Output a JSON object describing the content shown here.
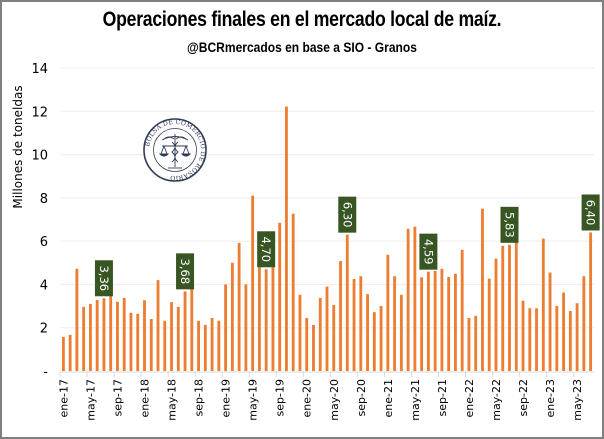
{
  "header": {
    "title": "Operaciones finales en el mercado local  de maíz.",
    "subtitle": "@BCRmercados en base a SIO - Granos"
  },
  "logo": {
    "name": "bolsa-de-comercio-de-rosario-seal",
    "text": "BOLSA DE COMERCIO DE ROSARIO"
  },
  "colors": {
    "bar": "#ED7D31",
    "label_bg": "#375623",
    "label_text": "#FFFFFF",
    "grid": "#EDEDED",
    "axis": "#D9D9D9",
    "logo": "#2F3B55"
  },
  "chart_data": {
    "type": "bar",
    "title": "Operaciones finales en el mercado local  de maíz.",
    "subtitle": "@BCRmercados en base a SIO - Granos",
    "xlabel": "",
    "ylabel": "Millones de toneldas",
    "ylim": [
      0,
      14
    ],
    "y_ticks": [
      0,
      2,
      4,
      6,
      8,
      10,
      12,
      14
    ],
    "y_tick_labels": [
      "-",
      "2",
      "4",
      "6",
      "8",
      "10",
      "12",
      "14"
    ],
    "grid": true,
    "legend": "none",
    "start_month": "ene-17",
    "x_tick_labels": [
      "ene-17",
      "may-17",
      "sep-17",
      "ene-18",
      "may-18",
      "sep-18",
      "ene-19",
      "may-19",
      "sep-19",
      "ene-20",
      "may-20",
      "sep-20",
      "ene-21",
      "may-21",
      "sep-21",
      "ene-22",
      "may-22",
      "sep-22",
      "ene-23",
      "may-23"
    ],
    "x_tick_every": 4,
    "values": [
      1.57,
      1.67,
      4.72,
      2.96,
      3.1,
      3.28,
      3.36,
      3.5,
      3.2,
      3.38,
      2.69,
      2.64,
      3.27,
      2.4,
      4.2,
      2.32,
      3.18,
      2.96,
      3.68,
      3.9,
      2.32,
      2.13,
      2.45,
      2.32,
      4.0,
      5.0,
      5.92,
      4.0,
      8.1,
      4.8,
      4.7,
      4.8,
      6.85,
      12.22,
      7.27,
      3.52,
      2.45,
      2.13,
      3.38,
      3.9,
      3.05,
      5.08,
      6.3,
      4.25,
      4.38,
      3.55,
      2.72,
      3.0,
      5.37,
      4.38,
      3.52,
      6.57,
      6.67,
      4.33,
      4.59,
      4.63,
      4.72,
      4.35,
      4.49,
      5.6,
      2.45,
      2.55,
      7.5,
      4.27,
      5.19,
      5.78,
      5.83,
      6.0,
      3.25,
      2.9,
      2.9,
      6.12,
      4.55,
      3.0,
      3.63,
      2.77,
      3.13,
      4.38,
      6.4
    ],
    "data_labels": [
      {
        "index": 6,
        "text": "3,36"
      },
      {
        "index": 18,
        "text": "3,68"
      },
      {
        "index": 30,
        "text": "4,70"
      },
      {
        "index": 42,
        "text": "6,30"
      },
      {
        "index": 54,
        "text": "4,59"
      },
      {
        "index": 66,
        "text": "5,83"
      },
      {
        "index": 78,
        "text": "6,40"
      }
    ]
  }
}
